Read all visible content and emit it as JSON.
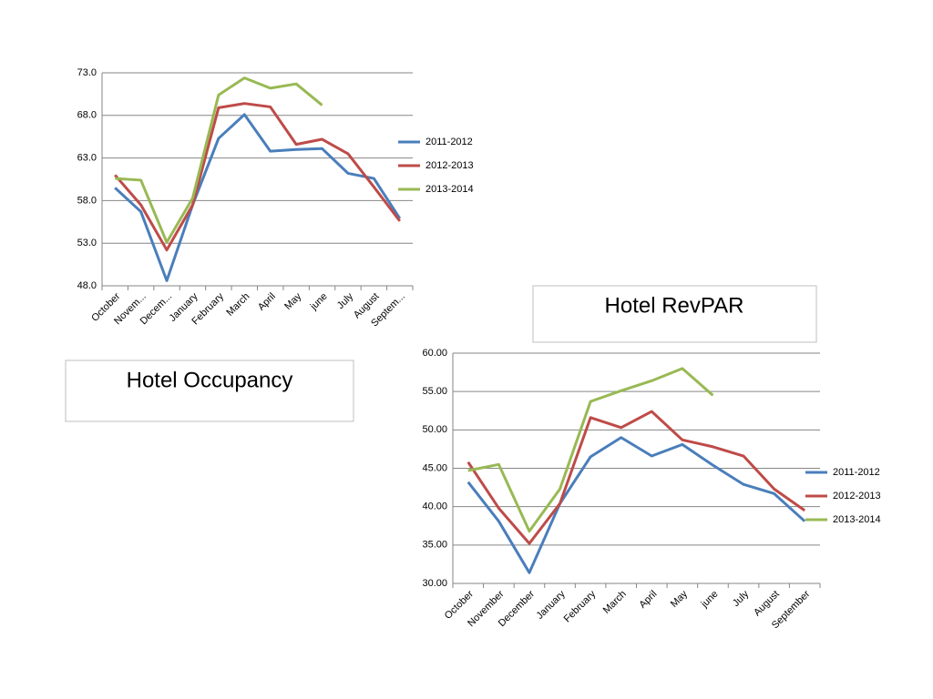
{
  "chart_data": [
    {
      "type": "line",
      "title": "Hotel Occupancy",
      "categories": [
        "October",
        "Novem...",
        "Decem...",
        "January",
        "February",
        "March",
        "April",
        "May",
        "june",
        "July",
        "August",
        "Septem..."
      ],
      "series": [
        {
          "name": "2011-2012",
          "color": "#4a7ebb",
          "values": [
            59.5,
            56.7,
            48.6,
            57.5,
            65.3,
            68.1,
            63.8,
            64.0,
            64.1,
            61.2,
            60.6,
            55.9
          ]
        },
        {
          "name": "2012-2013",
          "color": "#be4b48",
          "values": [
            61.0,
            57.5,
            52.2,
            57.5,
            68.9,
            69.4,
            69.0,
            64.6,
            65.2,
            63.5,
            59.6,
            55.6
          ]
        },
        {
          "name": "2013-2014",
          "color": "#98b954",
          "values": [
            60.6,
            60.4,
            53.1,
            58.3,
            70.4,
            72.4,
            71.2,
            71.7,
            69.2,
            null,
            null,
            null
          ]
        }
      ],
      "ylim": [
        48,
        73
      ],
      "yticks": [
        {
          "value": 48,
          "label": "48.0"
        },
        {
          "value": 53,
          "label": "53.0"
        },
        {
          "value": 58,
          "label": "58.0"
        },
        {
          "value": 63,
          "label": "63.0"
        },
        {
          "value": 68,
          "label": "68.0"
        },
        {
          "value": 73,
          "label": "73.0"
        }
      ],
      "grid": true,
      "legend": "right"
    },
    {
      "type": "line",
      "title": "Hotel RevPAR",
      "categories": [
        "October",
        "November",
        "December",
        "January",
        "February",
        "March",
        "April",
        "May",
        "june",
        "July",
        "August",
        "September"
      ],
      "series": [
        {
          "name": "2011-2012",
          "color": "#4a7ebb",
          "values": [
            43.2,
            38.1,
            31.4,
            40.4,
            46.5,
            49.0,
            46.6,
            48.1,
            45.4,
            42.9,
            41.7,
            38.1
          ]
        },
        {
          "name": "2012-2013",
          "color": "#be4b48",
          "values": [
            45.8,
            39.8,
            35.2,
            40.4,
            51.6,
            50.3,
            52.4,
            48.7,
            47.8,
            46.6,
            42.3,
            39.5
          ]
        },
        {
          "name": "2013-2014",
          "color": "#98b954",
          "values": [
            44.7,
            45.5,
            36.8,
            42.3,
            53.7,
            55.1,
            56.4,
            58.0,
            54.5,
            null,
            null,
            null
          ]
        }
      ],
      "ylim": [
        30,
        60
      ],
      "yticks": [
        {
          "value": 30,
          "label": "30.00"
        },
        {
          "value": 35,
          "label": "35.00"
        },
        {
          "value": 40,
          "label": "40.00"
        },
        {
          "value": 45,
          "label": "45.00"
        },
        {
          "value": 50,
          "label": "50.00"
        },
        {
          "value": 55,
          "label": "55.00"
        },
        {
          "value": 60,
          "label": "60.00"
        }
      ],
      "grid": true,
      "legend": "right"
    }
  ]
}
